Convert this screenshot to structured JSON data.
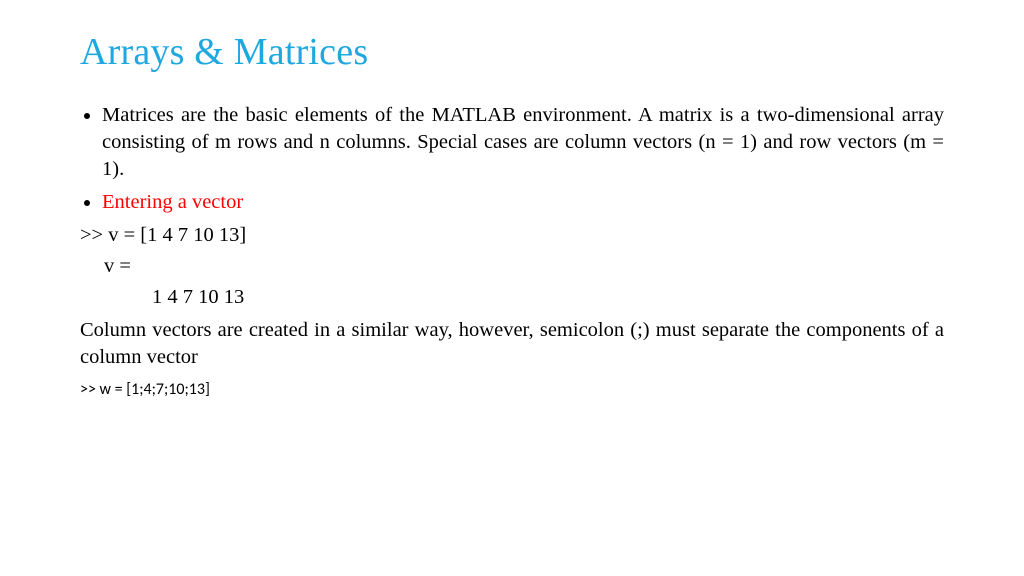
{
  "colors": {
    "title": "#1fa8e0",
    "body_text": "#000000",
    "accent_red": "#ff0000",
    "background": "#ffffff"
  },
  "typography": {
    "title_fontsize_pt": 28,
    "body_fontsize_pt": 15,
    "smallcode_fontsize_pt": 12,
    "title_family": "Times New Roman",
    "body_family": "Times New Roman",
    "smallcode_family": "Calibri"
  },
  "title": "Arrays & Matrices",
  "bullets": [
    {
      "text": "Matrices are the basic elements of the MATLAB environment. A matrix is a two-dimensional array consisting of m rows and n columns. Special cases are column vectors (n = 1) and row vectors (m = 1).",
      "color": "#000000"
    },
    {
      "text": "Entering a vector",
      "color": "#ff0000"
    }
  ],
  "lines": {
    "cmd1": ">> v = [1 4 7 10 13]",
    "out_var": "v =",
    "out_val": "1 4 7 10 13",
    "explain": "Column vectors are created in a similar way, however, semicolon (;) must separate the components of a column vector",
    "cmd2": ">> w = [1;4;7;10;13]"
  }
}
